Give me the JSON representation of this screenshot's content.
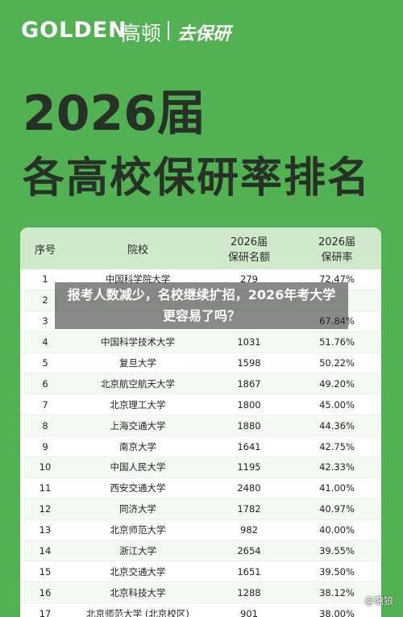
{
  "header": {
    "brand": "GOLDEN",
    "brand_cn": "高顿",
    "partner": "去保研"
  },
  "title": {
    "line1": "2026届",
    "line2": "各高校保研率排名"
  },
  "table": {
    "columns": [
      "序号",
      "院校",
      "2026届\n保研名额",
      "2026届\n保研率"
    ],
    "rows": [
      [
        "1",
        "中国科学院大学",
        "279",
        "72.47%"
      ],
      [
        "2",
        null,
        null,
        null
      ],
      [
        "3",
        null,
        null,
        "67.84%"
      ],
      [
        "4",
        "中国科学技术大学",
        "1031",
        "51.76%"
      ],
      [
        "5",
        "复旦大学",
        "1598",
        "50.22%"
      ],
      [
        "6",
        "北京航空航天大学",
        "1867",
        "49.20%"
      ],
      [
        "7",
        "北京理工大学",
        "1800",
        "45.00%"
      ],
      [
        "8",
        "上海交通大学",
        "1880",
        "44.36%"
      ],
      [
        "9",
        "南京大学",
        "1641",
        "42.75%"
      ],
      [
        "10",
        "中国人民大学",
        "1195",
        "42.33%"
      ],
      [
        "11",
        "西安交通大学",
        "2480",
        "41.00%"
      ],
      [
        "12",
        "同济大学",
        "1782",
        "40.97%"
      ],
      [
        "13",
        "北京师范大学",
        "982",
        "40.00%"
      ],
      [
        "14",
        "浙江大学",
        "2654",
        "39.55%"
      ],
      [
        "15",
        "北京交通大学",
        "1651",
        "39.50%"
      ],
      [
        "16",
        "北京科技大学",
        "1288",
        "38.12%"
      ],
      [
        "17",
        "北京师范大学 (北京校区)",
        "901",
        "38.00%"
      ]
    ]
  },
  "banner": "报考人数减少，名校继续扩招，2026年考大学更容易了吗？",
  "watermark": "@慵狼"
}
